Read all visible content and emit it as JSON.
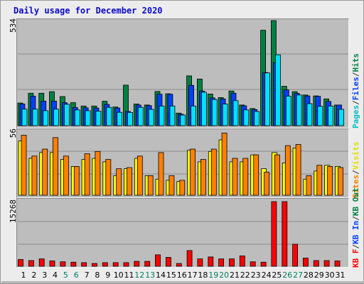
{
  "title": "Daily usage for December 2020",
  "colors": {
    "hits": "#008040",
    "files": "#0040ff",
    "pages": "#00e0ff",
    "visits": "#ffff00",
    "sites": "#ff8000",
    "kbytes": "#ff0000",
    "weekday_label": "#000000",
    "weekend_label": "#00805c"
  },
  "legend": {
    "top": [
      {
        "label": "Pages",
        "color": "#00c0c0"
      },
      {
        "label": "Files",
        "color": "#0040ff"
      },
      {
        "label": "Hits",
        "color": "#008040"
      }
    ],
    "middle": [
      {
        "label": "Sites",
        "color": "#ff8000"
      },
      {
        "label": "Visits",
        "color": "#e0e000"
      }
    ],
    "bottom": [
      {
        "label": "KB F",
        "color": "#ff0000"
      },
      {
        "label": "KB In",
        "color": "#0040ff"
      },
      {
        "label": "KB Out",
        "color": "#008040"
      }
    ],
    "separator": "/"
  },
  "chart_data": [
    {
      "type": "bar",
      "name": "hits-files-pages",
      "categories": [
        "1",
        "2",
        "3",
        "4",
        "5",
        "6",
        "7",
        "8",
        "9",
        "10",
        "11",
        "12",
        "13",
        "14",
        "15",
        "16",
        "17",
        "18",
        "19",
        "20",
        "21",
        "22",
        "23",
        "24",
        "25",
        "26",
        "27",
        "28",
        "29",
        "30",
        "31"
      ],
      "weekend_days": [
        "5",
        "6",
        "12",
        "13",
        "19",
        "20",
        "26",
        "27"
      ],
      "ymax_label": "534",
      "ylim": [
        0,
        534
      ],
      "series": [
        {
          "name": "Hits",
          "values": [
            115,
            165,
            165,
            173,
            148,
            117,
            100,
            100,
            124,
            95,
            206,
            110,
            105,
            174,
            162,
            64,
            253,
            237,
            161,
            143,
            176,
            105,
            87,
            485,
            534,
            200,
            173,
            156,
            151,
            136,
            105
          ]
        },
        {
          "name": "Files",
          "values": [
            110,
            150,
            125,
            125,
            117,
            92,
            91,
            90,
            108,
            90,
            72,
            105,
            102,
            160,
            160,
            58,
            205,
            176,
            141,
            136,
            165,
            101,
            82,
            270,
            320,
            182,
            164,
            151,
            149,
            123,
            105
          ]
        },
        {
          "name": "Pages",
          "values": [
            84,
            84,
            76,
            84,
            109,
            80,
            76,
            74,
            93,
            68,
            67,
            93,
            83,
            100,
            100,
            54,
            100,
            170,
            133,
            110,
            127,
            80,
            72,
            268,
            360,
            150,
            156,
            112,
            98,
            100,
            83
          ]
        }
      ]
    },
    {
      "type": "bar",
      "name": "visits-sites",
      "categories": [
        "1",
        "2",
        "3",
        "4",
        "5",
        "6",
        "7",
        "8",
        "9",
        "10",
        "11",
        "12",
        "13",
        "14",
        "15",
        "16",
        "17",
        "18",
        "19",
        "20",
        "21",
        "22",
        "23",
        "24",
        "25",
        "26",
        "27",
        "28",
        "29",
        "30",
        "31"
      ],
      "ymax_label": "56",
      "ylim": [
        0,
        56
      ],
      "series": [
        {
          "name": "Visits",
          "values": [
            47,
            32,
            37,
            37,
            31,
            25,
            31,
            32,
            29,
            17,
            23,
            32,
            17,
            14,
            13,
            12,
            39,
            29,
            38,
            48,
            29,
            29,
            35,
            23,
            37,
            28,
            41,
            14,
            21,
            26,
            25
          ]
        },
        {
          "name": "Sites",
          "values": [
            52,
            34,
            40,
            50,
            34,
            25,
            36,
            38,
            31,
            23,
            24,
            34,
            17,
            37,
            17,
            13,
            40,
            31,
            40,
            54,
            32,
            32,
            35,
            20,
            35,
            43,
            44,
            17,
            26,
            25,
            24
          ]
        }
      ]
    },
    {
      "type": "bar",
      "name": "kbytes",
      "categories": [
        "1",
        "2",
        "3",
        "4",
        "5",
        "6",
        "7",
        "8",
        "9",
        "10",
        "11",
        "12",
        "13",
        "14",
        "15",
        "16",
        "17",
        "18",
        "19",
        "20",
        "21",
        "22",
        "23",
        "24",
        "25",
        "26",
        "27",
        "28",
        "29",
        "30",
        "31"
      ],
      "ymax_label": "15268",
      "ylim": [
        0,
        15268
      ],
      "series": [
        {
          "name": "KB F",
          "values": [
            1600,
            1350,
            1750,
            1250,
            1050,
            950,
            850,
            650,
            850,
            850,
            850,
            1150,
            1150,
            2700,
            2100,
            650,
            3700,
            1750,
            2200,
            1750,
            1750,
            2450,
            1050,
            950,
            15268,
            15268,
            5200,
            1950,
            1350,
            1350,
            1250
          ]
        }
      ]
    }
  ]
}
